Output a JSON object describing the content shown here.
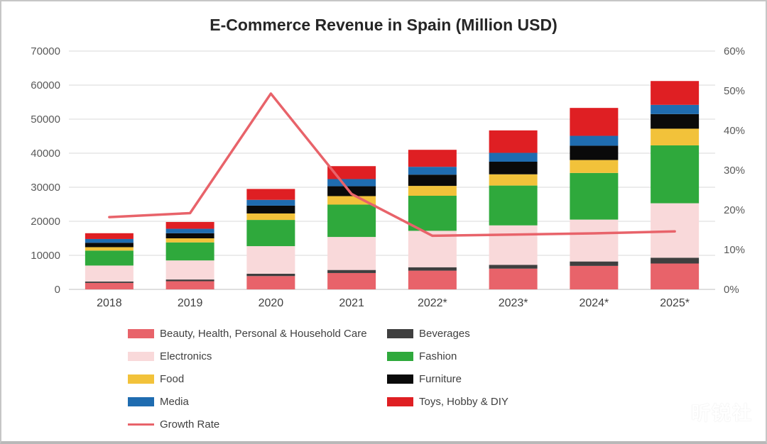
{
  "title": "E-Commerce Revenue in Spain (Million USD)",
  "watermark": "昕锐社",
  "chart_data": {
    "type": "bar",
    "subtype": "stacked-bars-with-line",
    "title": "E-Commerce Revenue in Spain (Million USD)",
    "categories": [
      "2018",
      "2019",
      "2020",
      "2021",
      "2022*",
      "2023*",
      "2024*",
      "2025*"
    ],
    "series": [
      {
        "name": "Beauty, Health, Personal & Household Care",
        "color": "#e8636a",
        "values": [
          1900,
          2400,
          3900,
          4800,
          5500,
          6100,
          6900,
          7600
        ]
      },
      {
        "name": "Beverages",
        "color": "#3f3f3f",
        "values": [
          400,
          500,
          700,
          900,
          1000,
          1100,
          1300,
          1700
        ]
      },
      {
        "name": "Electronics",
        "color": "#f9d9da",
        "values": [
          4700,
          5600,
          8100,
          9700,
          10700,
          11600,
          12300,
          16000
        ]
      },
      {
        "name": "Fashion",
        "color": "#2fa93c",
        "values": [
          4400,
          5300,
          7700,
          9500,
          10300,
          11700,
          13700,
          17000
        ]
      },
      {
        "name": "Food",
        "color": "#f2c23a",
        "values": [
          1000,
          1200,
          1900,
          2500,
          2900,
          3300,
          3800,
          4900
        ]
      },
      {
        "name": "Furniture",
        "color": "#0a0a0a",
        "values": [
          1300,
          1500,
          2300,
          2900,
          3300,
          3700,
          4200,
          4300
        ]
      },
      {
        "name": "Media",
        "color": "#1f6cb0",
        "values": [
          1100,
          1300,
          1700,
          2100,
          2300,
          2600,
          2900,
          2700
        ]
      },
      {
        "name": "Toys, Hobby & DIY",
        "color": "#df1f23",
        "values": [
          1700,
          2000,
          3200,
          3800,
          5000,
          6600,
          8200,
          7000
        ]
      }
    ],
    "line_series": {
      "name": "Growth Rate",
      "color": "#e8636a",
      "values": [
        18.2,
        19.2,
        49.3,
        24.0,
        13.5,
        13.8,
        14.1,
        14.6
      ]
    },
    "left_axis": {
      "min": 0,
      "max": 70000,
      "step": 10000,
      "suffix": ""
    },
    "right_axis": {
      "min": 0,
      "max": 60,
      "step": 10,
      "suffix": "%"
    },
    "grid": true,
    "legend_position": "bottom"
  }
}
